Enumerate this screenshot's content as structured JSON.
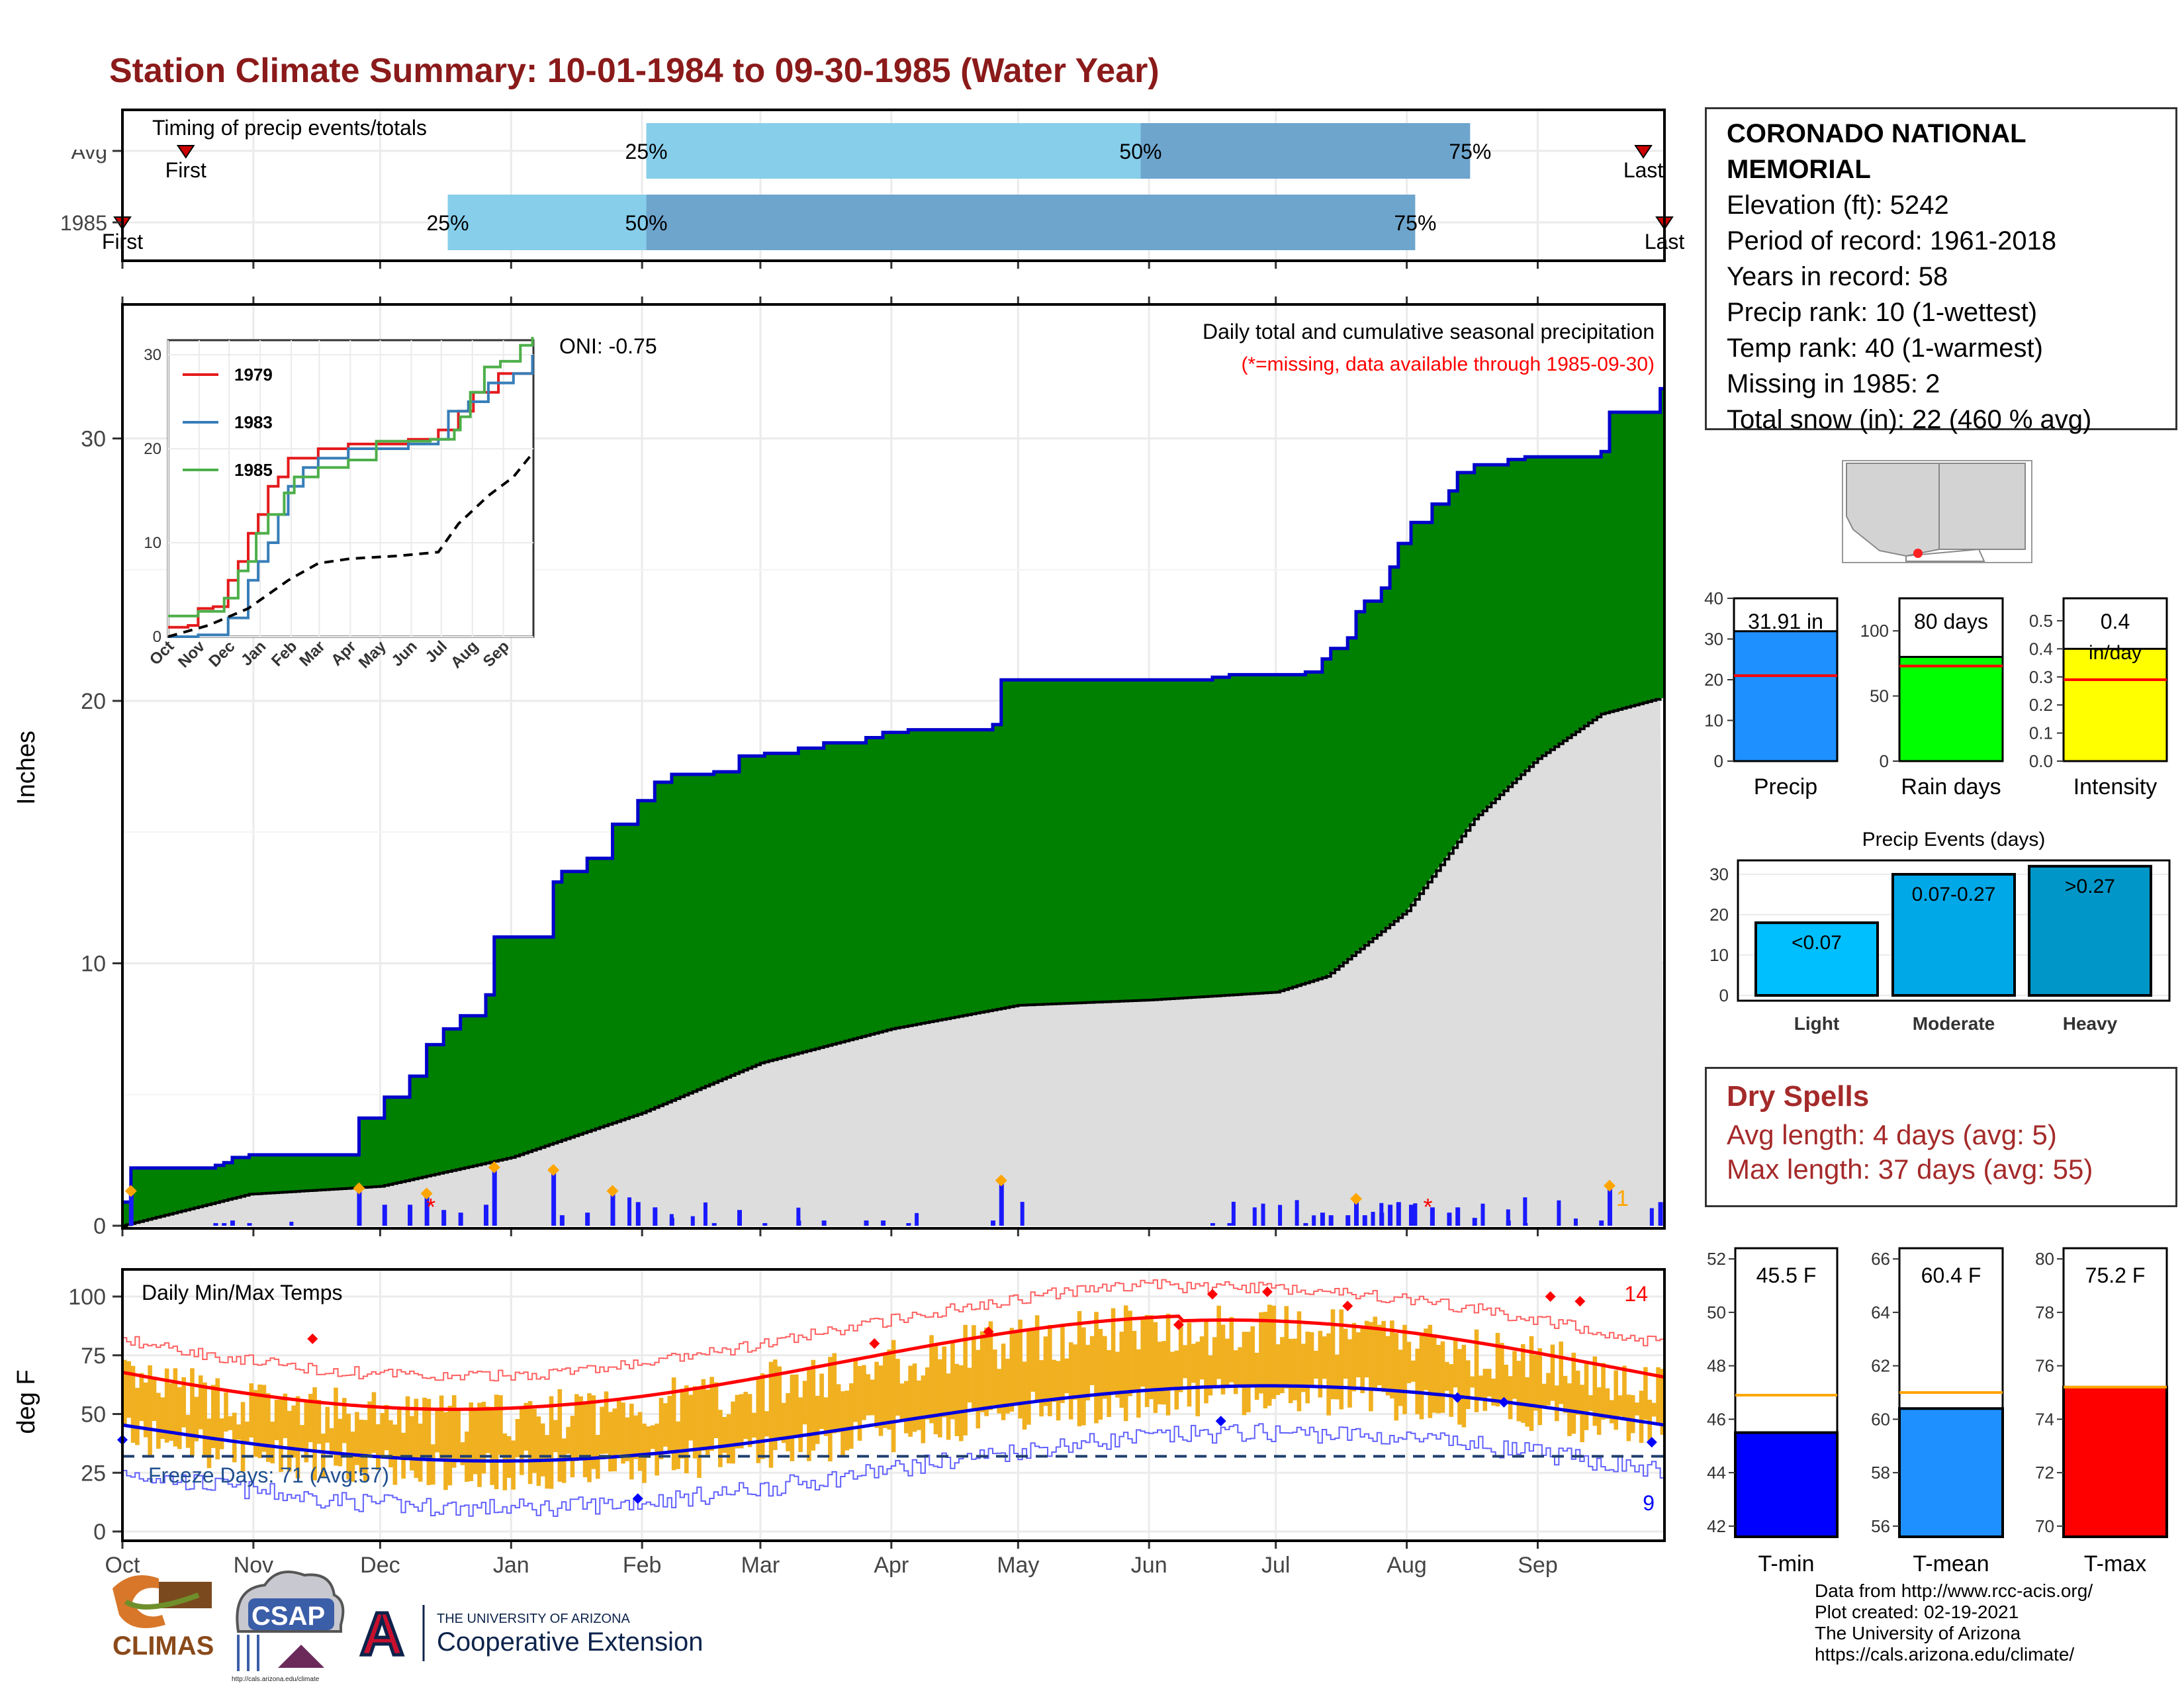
{
  "title": "Station Climate Summary: 10-01-1984 to 09-30-1985 (Water Year)",
  "colors": {
    "title": "#8b1a1a",
    "green_fill": "#008000",
    "blue_line": "#0000cc",
    "avg_fill": "#dddddd",
    "light_blue": "#87ceeb",
    "mid_blue": "#6ea5cd",
    "orange": "#f0b020",
    "red": "#ff0000",
    "dry_red": "#a52a2a"
  },
  "timing": {
    "label": "Timing of precip events/totals",
    "rows": [
      {
        "name": "Avg",
        "first_label": "First",
        "last_label": "Last",
        "first_day": 15,
        "last_day": 360,
        "q25_day": 124,
        "q50_day": 241,
        "q75_day": 319,
        "p25_label": "25%",
        "p50_label": "50%",
        "p75_label": "75%"
      },
      {
        "name": "1985",
        "first_label": "First",
        "last_label": "Last",
        "first_day": 0,
        "last_day": 365,
        "q25_day": 77,
        "q50_day": 124,
        "q75_day": 306,
        "p25_label": "25%",
        "p50_label": "50%",
        "p75_label": "75%"
      }
    ]
  },
  "precip": {
    "ylabel": "Inches",
    "oni": "ONI: -0.75",
    "subtitle": "Daily total and cumulative seasonal precipitation",
    "missing_note": "(*=missing, data available through 1985-09-30)",
    "yticks": [
      "0",
      "10",
      "20",
      "30"
    ],
    "ymax": 35,
    "snow_marker_label": "1"
  },
  "inset": {
    "yticks": [
      "0",
      "10",
      "20",
      "30"
    ],
    "xticks": [
      "Oct",
      "Nov",
      "Dec",
      "Jan",
      "Feb",
      "Mar",
      "Apr",
      "May",
      "Jun",
      "Jul",
      "Aug",
      "Sep"
    ],
    "legend": [
      {
        "name": "1979",
        "color": "#e41a1c"
      },
      {
        "name": "1983",
        "color": "#377eb8"
      },
      {
        "name": "1985",
        "color": "#4daf4a"
      }
    ]
  },
  "months": [
    "Oct",
    "Nov",
    "Dec",
    "Jan",
    "Feb",
    "Mar",
    "Apr",
    "May",
    "Jun",
    "Jul",
    "Aug",
    "Sep"
  ],
  "temps": {
    "label": "Daily Min/Max Temps",
    "ylabel": "deg F",
    "yticks": [
      "0",
      "25",
      "50",
      "75",
      "100"
    ],
    "freeze_label": "Freeze Days: 71 (Avg:57)",
    "record_high_count": "14",
    "record_low_count": "9",
    "freeze_line": 32
  },
  "station": {
    "name_line1": "CORONADO NATIONAL",
    "name_line2": "MEMORIAL",
    "elevation": "Elevation (ft): 5242",
    "period": "Period of record: 1961-2018",
    "years": "Years in record: 58",
    "precip_rank": "Precip rank: 10 (1-wettest)",
    "temp_rank": "Temp rank: 40 (1-warmest)",
    "missing": "Missing in 1985: 2",
    "snow": "Total snow (in): 22 (460 % avg)"
  },
  "summary_bars": [
    {
      "label": "Precip",
      "value_label": "31.91 in",
      "value": 31.91,
      "avg": 21,
      "ymax": 40,
      "yticks": [
        "0",
        "10",
        "20",
        "30",
        "40"
      ],
      "color": "#1e90ff"
    },
    {
      "label": "Rain days",
      "value_label": "80 days",
      "value": 80,
      "avg": 73,
      "ymax": 125,
      "yticks": [
        "0",
        "50",
        "100"
      ],
      "color": "#00ff00"
    },
    {
      "label": "Intensity",
      "value_label": "0.4",
      "value_label2": "in/day",
      "value": 0.4,
      "avg": 0.29,
      "ymax": 0.58,
      "yticks": [
        "0.0",
        "0.1",
        "0.2",
        "0.3",
        "0.4",
        "0.5"
      ],
      "color": "#ffff00"
    }
  ],
  "events": {
    "title": "Precip Events (days)",
    "yticks": [
      "0",
      "10",
      "20",
      "30"
    ],
    "bars": [
      {
        "label": "Light",
        "value_label": "<0.07",
        "value": 18,
        "color": "#00bfff"
      },
      {
        "label": "Moderate",
        "value_label": "0.07-0.27",
        "value": 30,
        "color": "#00a8e8"
      },
      {
        "label": "Heavy",
        "value_label": ">0.27",
        "value": 32,
        "color": "#0096c7"
      }
    ]
  },
  "dry_spells": {
    "title": "Dry Spells",
    "avg": "Avg length: 4 days (avg: 5)",
    "max": "Max length: 37 days (avg: 55)"
  },
  "temp_bars": [
    {
      "label": "T-min",
      "value_label": "45.5 F",
      "value": 45.5,
      "avg": 46.9,
      "ymin": 41.6,
      "ymax": 52.4,
      "yticks": [
        "42",
        "44",
        "46",
        "48",
        "50",
        "52"
      ],
      "color": "#0000ff"
    },
    {
      "label": "T-mean",
      "value_label": "60.4 F",
      "value": 60.4,
      "avg": 61.0,
      "ymin": 55.6,
      "ymax": 66.4,
      "yticks": [
        "56",
        "58",
        "60",
        "62",
        "64",
        "66"
      ],
      "color": "#1e90ff"
    },
    {
      "label": "T-max",
      "value_label": "75.2 F",
      "value": 75.2,
      "avg": 75.2,
      "ymin": 69.6,
      "ymax": 80.4,
      "yticks": [
        "70",
        "72",
        "74",
        "76",
        "78",
        "80"
      ],
      "color": "#ff0000"
    }
  ],
  "footer": {
    "line1": "Data from http://www.rcc-acis.org/",
    "line2": "Plot created: 02-19-2021",
    "line3": "The University of Arizona",
    "line4": "https://cals.arizona.edu/climate/"
  },
  "logos": {
    "climas": "CLIMAS",
    "csap": "CSAP",
    "csap_url": "http://cals.arizona.edu/climate",
    "ua_line1": "THE UNIVERSITY OF ARIZONA",
    "ua_line2": "Cooperative Extension",
    "ua_letter": "A"
  },
  "chart_data": [
    {
      "type": "area",
      "title": "Daily total and cumulative seasonal precipitation",
      "ylabel": "Inches",
      "ylim": [
        0,
        35
      ],
      "x_months": [
        "Oct",
        "Nov",
        "Dec",
        "Jan",
        "Feb",
        "Mar",
        "Apr",
        "May",
        "Jun",
        "Jul",
        "Aug",
        "Sep"
      ],
      "series": [
        {
          "name": "cumulative_1985",
          "points": [
            [
              0,
              0.9
            ],
            [
              2,
              2.2
            ],
            [
              22,
              2.3
            ],
            [
              24,
              2.4
            ],
            [
              26,
              2.6
            ],
            [
              30,
              2.7
            ],
            [
              56,
              4.1
            ],
            [
              62,
              4.9
            ],
            [
              68,
              5.7
            ],
            [
              72,
              6.9
            ],
            [
              76,
              7.5
            ],
            [
              80,
              8.0
            ],
            [
              86,
              8.8
            ],
            [
              88,
              11.0
            ],
            [
              92,
              11.0
            ],
            [
              100,
              11.0
            ],
            [
              102,
              13.1
            ],
            [
              104,
              13.5
            ],
            [
              108,
              13.5
            ],
            [
              110,
              14.0
            ],
            [
              114,
              14.0
            ],
            [
              116,
              15.3
            ],
            [
              118,
              15.3
            ],
            [
              122,
              16.2
            ],
            [
              126,
              16.9
            ],
            [
              130,
              17.2
            ],
            [
              140,
              17.3
            ],
            [
              146,
              17.9
            ],
            [
              152,
              18.0
            ],
            [
              160,
              18.2
            ],
            [
              166,
              18.4
            ],
            [
              176,
              18.6
            ],
            [
              180,
              18.8
            ],
            [
              186,
              18.9
            ],
            [
              206,
              19.1
            ],
            [
              208,
              20.8
            ],
            [
              226,
              20.8
            ],
            [
              240,
              20.8
            ],
            [
              258,
              20.9
            ],
            [
              262,
              21.0
            ],
            [
              280,
              21.1
            ],
            [
              284,
              21.6
            ],
            [
              286,
              22.0
            ],
            [
              290,
              22.4
            ],
            [
              292,
              23.4
            ],
            [
              294,
              23.8
            ],
            [
              298,
              24.3
            ],
            [
              300,
              25.1
            ],
            [
              302,
              26.0
            ],
            [
              305,
              26.8
            ],
            [
              310,
              27.5
            ],
            [
              314,
              28.0
            ],
            [
              316,
              28.7
            ],
            [
              320,
              29.0
            ],
            [
              328,
              29.2
            ],
            [
              332,
              29.3
            ],
            [
              350,
              29.5
            ],
            [
              352,
              31.0
            ],
            [
              358,
              31.0
            ],
            [
              364,
              31.9
            ]
          ]
        },
        {
          "name": "average",
          "points": [
            [
              0,
              0
            ],
            [
              30,
              1.2
            ],
            [
              61,
              1.5
            ],
            [
              92,
              2.6
            ],
            [
              123,
              4.3
            ],
            [
              151,
              6.2
            ],
            [
              182,
              7.5
            ],
            [
              212,
              8.4
            ],
            [
              243,
              8.6
            ],
            [
              273,
              8.9
            ],
            [
              285,
              9.5
            ],
            [
              304,
              12.0
            ],
            [
              320,
              15.5
            ],
            [
              335,
              17.8
            ],
            [
              350,
              19.5
            ],
            [
              364,
              20.1
            ]
          ]
        }
      ]
    },
    {
      "type": "bar",
      "title": "Precip Events (days)",
      "categories": [
        "Light",
        "Moderate",
        "Heavy"
      ],
      "values": [
        18,
        30,
        32
      ],
      "ylim": [
        0,
        33
      ]
    }
  ]
}
